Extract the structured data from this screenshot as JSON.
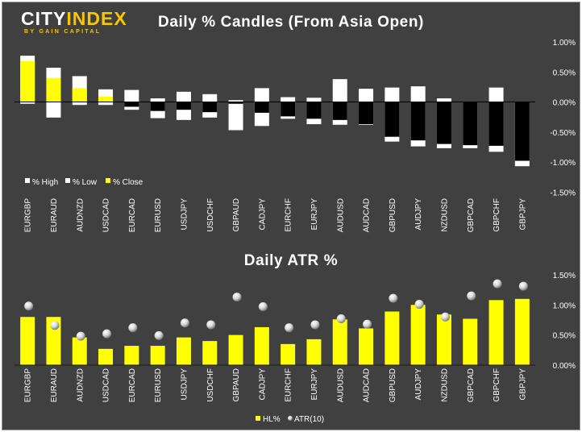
{
  "logo": {
    "part1": "CITY",
    "part2": "INDEX",
    "tagline": "BY GAIN CAPITAL"
  },
  "colors": {
    "background": "#404040",
    "yellow": "#ffff00",
    "white": "#ffffff",
    "black": "#000000"
  },
  "chart_data": [
    {
      "type": "bar",
      "subtype": "candle",
      "title": "Daily % Candles (From Asia Open)",
      "categories": [
        "EURGBP",
        "EURAUD",
        "AUDNZD",
        "USDCAD",
        "EURCAD",
        "EURUSD",
        "USDJPY",
        "USDCHF",
        "GBPAUD",
        "CADJPY",
        "EURCHF",
        "EURJPY",
        "AUDUSD",
        "AUDCAD",
        "GBPUSD",
        "AUDJPY",
        "NZDUSD",
        "GBPCAD",
        "GBPCHF",
        "GBPJPY"
      ],
      "series": [
        {
          "name": "% High",
          "values": [
            0.77,
            0.57,
            0.43,
            0.21,
            0.2,
            0.06,
            0.17,
            0.13,
            0.03,
            0.23,
            0.08,
            0.07,
            0.38,
            0.22,
            0.24,
            0.26,
            0.06,
            0.0,
            0.24,
            0.0
          ]
        },
        {
          "name": "% Low",
          "values": [
            -0.03,
            -0.26,
            -0.05,
            -0.05,
            -0.13,
            -0.27,
            -0.3,
            -0.26,
            -0.47,
            -0.4,
            -0.28,
            -0.37,
            -0.38,
            -0.38,
            -0.66,
            -0.74,
            -0.77,
            -0.77,
            -0.83,
            -1.07
          ]
        },
        {
          "name": "% Close",
          "values": [
            0.68,
            0.4,
            0.23,
            0.09,
            -0.08,
            -0.15,
            -0.13,
            -0.17,
            -0.03,
            -0.18,
            -0.24,
            -0.28,
            -0.3,
            -0.37,
            -0.58,
            -0.64,
            -0.7,
            -0.72,
            -0.73,
            -0.98
          ]
        }
      ],
      "y_ticks": [
        "1.00%",
        "0.50%",
        "0.00%",
        "-0.50%",
        "-1.00%",
        "-1.50%"
      ],
      "ylim": [
        -1.5,
        1.0
      ],
      "legend": [
        {
          "label": "% High",
          "color": "#ffffff"
        },
        {
          "label": "% Low",
          "color": "#ffffff"
        },
        {
          "label": "% Close",
          "color": "#ffff00"
        }
      ],
      "legend_position": "bottom-left",
      "grid": false
    },
    {
      "type": "bar",
      "title": "Daily ATR %",
      "categories": [
        "EURGBP",
        "EURAUD",
        "AUDNZD",
        "USDCAD",
        "EURCAD",
        "EURUSD",
        "USDJPY",
        "USDCHF",
        "GBPAUD",
        "CADJPY",
        "EURCHF",
        "EURJPY",
        "AUDUSD",
        "AUDCAD",
        "GBPUSD",
        "AUDJPY",
        "NZDUSD",
        "GBPCAD",
        "GBPCHF",
        "GBPJPY"
      ],
      "series": [
        {
          "name": "HL%",
          "type": "bar",
          "values": [
            0.8,
            0.8,
            0.46,
            0.27,
            0.32,
            0.32,
            0.46,
            0.4,
            0.5,
            0.63,
            0.35,
            0.43,
            0.76,
            0.61,
            0.89,
            1.0,
            0.84,
            0.77,
            1.08,
            1.1
          ]
        },
        {
          "name": "ATR(10)",
          "type": "scatter",
          "values": [
            0.98,
            0.66,
            0.48,
            0.52,
            0.62,
            0.49,
            0.7,
            0.67,
            1.13,
            0.97,
            0.62,
            0.67,
            0.77,
            0.68,
            1.11,
            1.01,
            0.8,
            1.15,
            1.35,
            1.31
          ]
        }
      ],
      "y_ticks": [
        "1.50%",
        "1.00%",
        "0.50%",
        "0.00%"
      ],
      "ylim": [
        0,
        1.5
      ],
      "legend": [
        {
          "label": "HL%",
          "color": "#ffff00"
        },
        {
          "label": "ATR(10)",
          "color": "#ffffff"
        }
      ],
      "legend_position": "bottom",
      "grid": false
    }
  ]
}
